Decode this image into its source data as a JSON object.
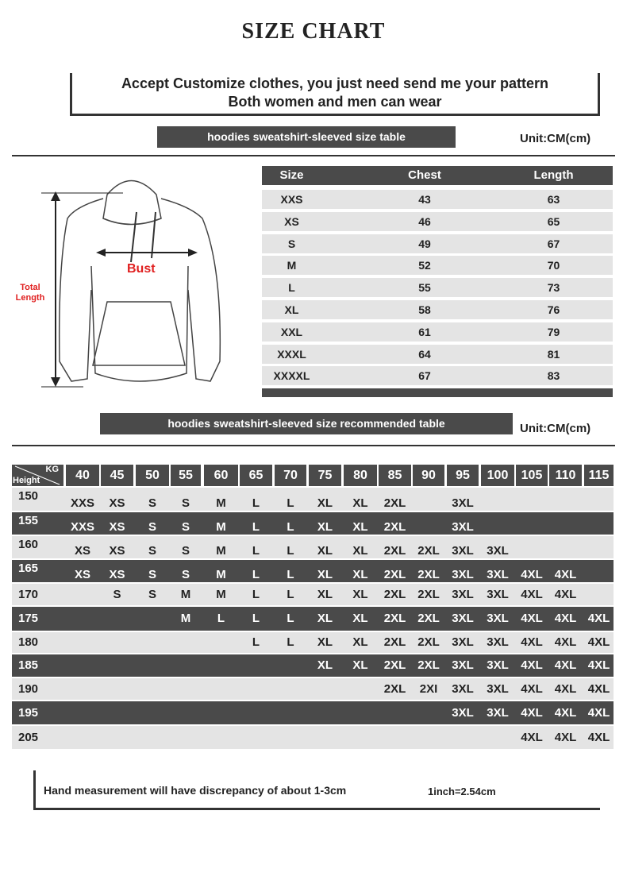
{
  "title": "SIZE CHART",
  "banner": {
    "line1": "Accept Customize clothes, you just need send me your pattern",
    "line2": "Both women and men can wear"
  },
  "size_table": {
    "title": "hoodies sweatshirt-sleeved size  table",
    "unit": "Unit:CM(cm)",
    "headers": [
      "Size",
      "Chest",
      "Length"
    ],
    "rows": [
      [
        "XXS",
        "43",
        "63"
      ],
      [
        "XS",
        "46",
        "65"
      ],
      [
        "S",
        "49",
        "67"
      ],
      [
        "M",
        "52",
        "70"
      ],
      [
        "L",
        "55",
        "73"
      ],
      [
        "XL",
        "58",
        "76"
      ],
      [
        "XXL",
        "61",
        "79"
      ],
      [
        "XXXL",
        "64",
        "81"
      ],
      [
        "XXXXL",
        "67",
        "83"
      ]
    ]
  },
  "diagram": {
    "bust_label": "Bust",
    "length_label_1": "Total",
    "length_label_2": "Length",
    "label_color": "#e02020"
  },
  "recommended_table": {
    "title": "hoodies sweatshirt-sleeved size recommended table",
    "unit": "Unit:CM(cm)",
    "corner_kg": "KG",
    "corner_height": "Height",
    "weights": [
      "40",
      "45",
      "50",
      "55",
      "60",
      "65",
      "70",
      "75",
      "80",
      "85",
      "90",
      "95",
      "100",
      "105",
      "110",
      "115"
    ],
    "rows": [
      {
        "height": "150",
        "sizes": [
          "XXS",
          "XS",
          "S",
          "S",
          "M",
          "L",
          "L",
          "XL",
          "XL",
          "2XL",
          "",
          "3XL",
          "",
          "",
          "",
          ""
        ]
      },
      {
        "height": "155",
        "sizes": [
          "XXS",
          "XS",
          "S",
          "S",
          "M",
          "L",
          "L",
          "XL",
          "XL",
          "2XL",
          "",
          "3XL",
          "",
          "",
          "",
          ""
        ]
      },
      {
        "height": "160",
        "sizes": [
          "XS",
          "XS",
          "S",
          "S",
          "M",
          "L",
          "L",
          "XL",
          "XL",
          "2XL",
          "2XL",
          "3XL",
          "3XL",
          "",
          "",
          ""
        ]
      },
      {
        "height": "165",
        "sizes": [
          "XS",
          "XS",
          "S",
          "S",
          "M",
          "L",
          "L",
          "XL",
          "XL",
          "2XL",
          "2XL",
          "3XL",
          "3XL",
          "4XL",
          "4XL",
          ""
        ]
      },
      {
        "height": "170",
        "sizes": [
          "",
          "S",
          "S",
          "M",
          "M",
          "L",
          "L",
          "XL",
          "XL",
          "2XL",
          "2XL",
          "3XL",
          "3XL",
          "4XL",
          "4XL",
          ""
        ]
      },
      {
        "height": "175",
        "sizes": [
          "",
          "",
          "",
          "M",
          "L",
          "L",
          "L",
          "XL",
          "XL",
          "2XL",
          "2XL",
          "3XL",
          "3XL",
          "4XL",
          "4XL",
          "4XL"
        ]
      },
      {
        "height": "180",
        "sizes": [
          "",
          "",
          "",
          "",
          "",
          "L",
          "L",
          "XL",
          "XL",
          "2XL",
          "2XL",
          "3XL",
          "3XL",
          "4XL",
          "4XL",
          "4XL"
        ]
      },
      {
        "height": "185",
        "sizes": [
          "",
          "",
          "",
          "",
          "",
          "",
          "",
          "XL",
          "XL",
          "2XL",
          "2XL",
          "3XL",
          "3XL",
          "4XL",
          "4XL",
          "4XL"
        ]
      },
      {
        "height": "190",
        "sizes": [
          "",
          "",
          "",
          "",
          "",
          "",
          "",
          "",
          "",
          "2XL",
          "2XI",
          "3XL",
          "3XL",
          "4XL",
          "4XL",
          "4XL"
        ]
      },
      {
        "height": "195",
        "sizes": [
          "",
          "",
          "",
          "",
          "",
          "",
          "",
          "",
          "",
          "",
          "",
          "3XL",
          "3XL",
          "4XL",
          "4XL",
          "4XL"
        ]
      },
      {
        "height": "205",
        "sizes": [
          "",
          "",
          "",
          "",
          "",
          "",
          "",
          "",
          "",
          "",
          "",
          "",
          "",
          "4XL",
          "4XL",
          "4XL"
        ]
      }
    ]
  },
  "footer": {
    "note": "Hand measurement will have discrepancy of about  1-3cm",
    "conversion": "1inch=2.54cm"
  }
}
